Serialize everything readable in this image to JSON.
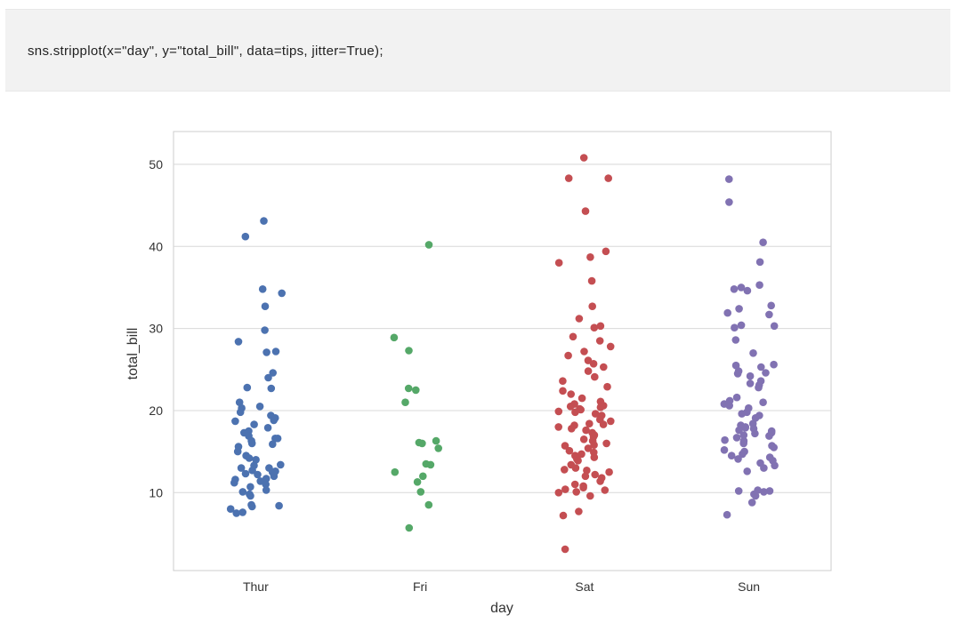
{
  "code_cell": {
    "source": "sns.stripplot(x=\"day\", y=\"total_bill\", data=tips, jitter=True);"
  },
  "chart_data": {
    "type": "scatter",
    "title": "",
    "xlabel": "day",
    "ylabel": "total_bill",
    "categories": [
      "Thur",
      "Fri",
      "Sat",
      "Sun"
    ],
    "ylim": [
      0.5,
      54
    ],
    "yticks": [
      10,
      20,
      30,
      40,
      50
    ],
    "grid": true,
    "legend": "none",
    "colors": {
      "Thur": "#4c72b0",
      "Fri": "#55a868",
      "Sat": "#c44e52",
      "Sun": "#8172b2",
      "grid": "#d8d8d8",
      "frame": "#cccccc"
    },
    "series": [
      {
        "category": "Thur",
        "values": [
          43.1,
          41.2,
          34.8,
          34.3,
          32.7,
          29.8,
          28.4,
          27.2,
          27.1,
          24.6,
          24.0,
          22.8,
          22.7,
          21.0,
          20.5,
          20.3,
          19.8,
          19.4,
          19.1,
          18.8,
          18.7,
          18.3,
          17.9,
          17.5,
          17.3,
          16.9,
          16.6,
          16.6,
          16.3,
          16.0,
          15.9,
          15.6,
          15.0,
          14.5,
          14.2,
          14.0,
          13.4,
          13.3,
          13.0,
          13.0,
          12.7,
          12.6,
          12.5,
          12.3,
          12.2,
          12.0,
          11.7,
          11.6,
          11.4,
          11.2,
          11.0,
          10.7,
          10.3,
          10.1,
          9.8,
          9.6,
          8.5,
          8.4,
          8.3,
          8.0,
          7.6,
          7.5
        ]
      },
      {
        "category": "Fri",
        "values": [
          40.2,
          28.9,
          27.3,
          22.7,
          22.5,
          21.0,
          16.3,
          16.1,
          16.0,
          15.4,
          13.5,
          13.4,
          12.5,
          12.0,
          11.3,
          10.1,
          8.5,
          5.7
        ]
      },
      {
        "category": "Sat",
        "values": [
          50.8,
          48.3,
          48.3,
          44.3,
          39.4,
          38.7,
          38.0,
          35.8,
          32.7,
          31.2,
          30.3,
          30.1,
          29.0,
          28.5,
          27.8,
          27.2,
          26.7,
          26.1,
          25.7,
          25.3,
          24.8,
          24.1,
          23.6,
          22.9,
          22.4,
          22.0,
          21.5,
          21.1,
          20.8,
          20.6,
          20.5,
          20.4,
          20.2,
          20.1,
          19.9,
          19.8,
          19.6,
          19.4,
          18.9,
          18.7,
          18.4,
          18.3,
          18.2,
          18.0,
          17.8,
          17.6,
          17.3,
          17.0,
          16.8,
          16.5,
          16.3,
          16.0,
          15.8,
          15.7,
          15.4,
          15.1,
          14.9,
          14.7,
          14.5,
          14.3,
          14.1,
          13.9,
          13.4,
          13.0,
          12.8,
          12.7,
          12.5,
          12.2,
          12.0,
          11.8,
          11.4,
          11.0,
          10.8,
          10.6,
          10.4,
          10.3,
          10.1,
          10.0,
          9.6,
          7.7,
          7.2,
          3.1
        ]
      },
      {
        "category": "Sun",
        "values": [
          48.2,
          45.4,
          40.5,
          38.1,
          35.3,
          35.0,
          34.8,
          34.6,
          32.8,
          32.4,
          31.9,
          31.7,
          30.4,
          30.3,
          30.1,
          28.6,
          27.0,
          25.6,
          25.5,
          25.3,
          24.8,
          24.6,
          24.5,
          24.2,
          23.6,
          23.3,
          23.1,
          22.8,
          21.6,
          21.2,
          21.0,
          20.8,
          20.6,
          20.3,
          19.8,
          19.6,
          19.4,
          19.1,
          18.4,
          18.2,
          18.0,
          17.9,
          17.8,
          17.6,
          17.5,
          17.3,
          17.2,
          17.0,
          16.9,
          16.7,
          16.4,
          16.3,
          16.0,
          15.7,
          15.5,
          15.2,
          15.0,
          14.7,
          14.5,
          14.3,
          14.1,
          13.9,
          13.6,
          13.3,
          13.0,
          12.6,
          10.3,
          10.2,
          10.2,
          10.1,
          9.8,
          9.6,
          8.8,
          7.3
        ]
      }
    ]
  }
}
